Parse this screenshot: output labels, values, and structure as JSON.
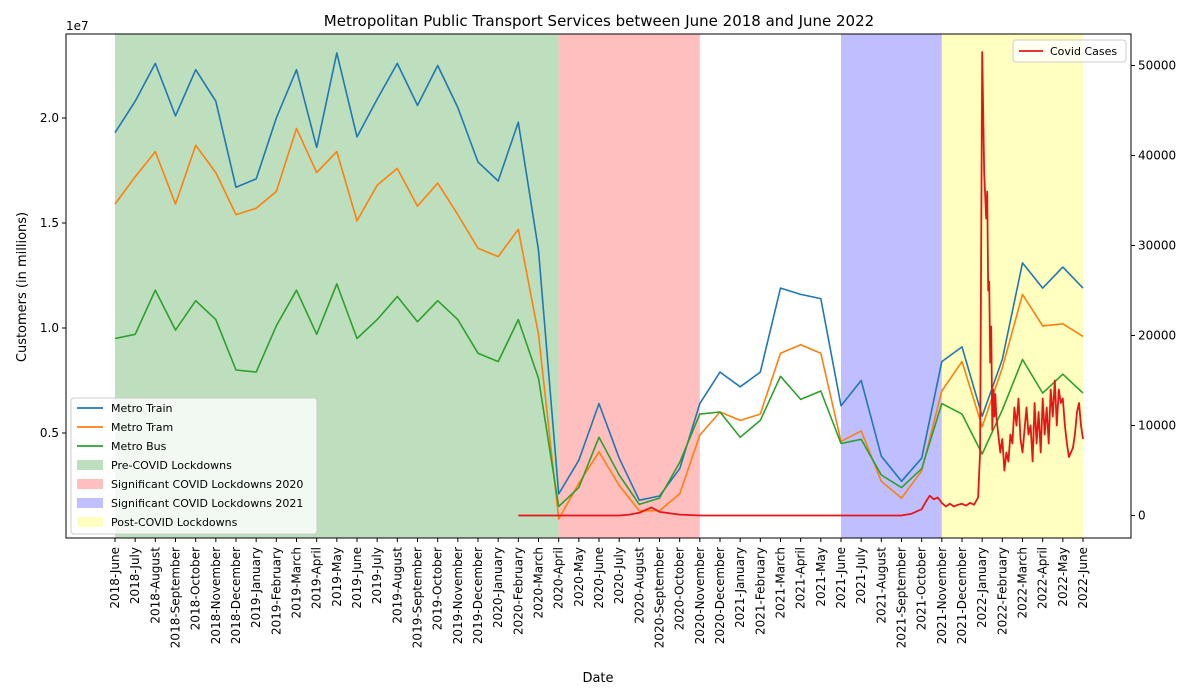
{
  "chart_data": {
    "type": "line",
    "title": "Metropolitan Public Transport Services between June 2018 and June 2022",
    "xlabel": "Date",
    "ylabel": "Customers (in millions)",
    "y_offset_label": "1e7",
    "ylim": [
      0,
      24000000
    ],
    "y2lim": [
      -2500,
      53500
    ],
    "grid": false,
    "categories": [
      "2018-June",
      "2018-July",
      "2018-August",
      "2018-September",
      "2018-October",
      "2018-November",
      "2018-December",
      "2019-January",
      "2019-February",
      "2019-March",
      "2019-April",
      "2019-May",
      "2019-June",
      "2019-July",
      "2019-August",
      "2019-September",
      "2019-October",
      "2019-November",
      "2019-December",
      "2020-January",
      "2020-February",
      "2020-March",
      "2020-April",
      "2020-May",
      "2020-June",
      "2020-July",
      "2020-August",
      "2020-September",
      "2020-October",
      "2020-November",
      "2020-December",
      "2021-January",
      "2021-February",
      "2021-March",
      "2021-April",
      "2021-May",
      "2021-June",
      "2021-July",
      "2021-August",
      "2021-September",
      "2021-October",
      "2021-November",
      "2021-December",
      "2022-January",
      "2022-February",
      "2022-March",
      "2022-April",
      "2022-May",
      "2022-June"
    ],
    "y_ticks": [
      {
        "value": 5000000,
        "label": "0.5"
      },
      {
        "value": 10000000,
        "label": "1.0"
      },
      {
        "value": 15000000,
        "label": "1.5"
      },
      {
        "value": 20000000,
        "label": "2.0"
      }
    ],
    "y2_ticks": [
      {
        "value": 0,
        "label": "0"
      },
      {
        "value": 10000,
        "label": "10000"
      },
      {
        "value": 20000,
        "label": "20000"
      },
      {
        "value": 30000,
        "label": "30000"
      },
      {
        "value": 40000,
        "label": "40000"
      },
      {
        "value": 50000,
        "label": "50000"
      }
    ],
    "series": [
      {
        "name": "Metro Train",
        "color": "#1f77b4",
        "values": [
          19300000,
          20800000,
          22600000,
          20100000,
          22300000,
          20800000,
          16700000,
          17100000,
          20000000,
          22300000,
          18600000,
          23100000,
          19100000,
          20900000,
          22600000,
          20600000,
          22500000,
          20500000,
          17900000,
          17000000,
          19800000,
          13700000,
          2100000,
          3700000,
          6400000,
          3800000,
          1800000,
          2000000,
          3300000,
          6400000,
          7900000,
          7200000,
          7900000,
          11900000,
          11600000,
          11400000,
          6300000,
          7500000,
          3900000,
          2700000,
          3800000,
          8400000,
          9100000,
          5800000,
          8500000,
          13100000,
          11900000,
          12900000,
          11900000
        ]
      },
      {
        "name": "Metro Tram",
        "color": "#ff7f0e",
        "values": [
          15900000,
          17200000,
          18400000,
          15900000,
          18700000,
          17400000,
          15400000,
          15700000,
          16500000,
          19500000,
          17400000,
          18400000,
          15100000,
          16800000,
          17600000,
          15800000,
          16900000,
          15400000,
          13800000,
          13400000,
          14700000,
          9700000,
          900000,
          2600000,
          4100000,
          2500000,
          1300000,
          1300000,
          2100000,
          4900000,
          6000000,
          5600000,
          5900000,
          8800000,
          9200000,
          8800000,
          4600000,
          5100000,
          2700000,
          1900000,
          3200000,
          7000000,
          8400000,
          5300000,
          8100000,
          11600000,
          10100000,
          10200000,
          9600000
        ]
      },
      {
        "name": "Metro Bus",
        "color": "#2ca02c",
        "values": [
          9500000,
          9700000,
          11800000,
          9900000,
          11300000,
          10400000,
          8000000,
          7900000,
          10100000,
          11800000,
          9700000,
          12100000,
          9500000,
          10400000,
          11500000,
          10300000,
          11300000,
          10400000,
          8800000,
          8400000,
          10400000,
          7600000,
          1500000,
          2400000,
          4800000,
          3000000,
          1600000,
          1900000,
          3600000,
          5900000,
          6000000,
          4800000,
          5600000,
          7700000,
          6600000,
          7000000,
          4500000,
          4700000,
          3000000,
          2400000,
          3300000,
          6400000,
          5900000,
          4000000,
          6100000,
          8500000,
          6900000,
          7800000,
          6900000
        ]
      }
    ],
    "covid_series": {
      "name": "Covid Cases",
      "color": "#e8141a",
      "axis": "right",
      "x": [
        20.0,
        21.0,
        22.0,
        23.0,
        24.0,
        25.0,
        25.5,
        26.0,
        26.3,
        26.6,
        27.0,
        28.0,
        29.0,
        30.0,
        32.0,
        34.0,
        36.0,
        38.0,
        39.0,
        39.5,
        40.0,
        40.2,
        40.4,
        40.6,
        40.8,
        41.0,
        41.2,
        41.4,
        41.6,
        41.8,
        42.0,
        42.2,
        42.4,
        42.6,
        42.8,
        42.9,
        43.0,
        43.1,
        43.2,
        43.25,
        43.3,
        43.35,
        43.4,
        43.45,
        43.5,
        43.55,
        43.6,
        43.65,
        43.7,
        43.8,
        43.9,
        44.0,
        44.1,
        44.2,
        44.3,
        44.4,
        44.5,
        44.6,
        44.7,
        44.8,
        44.9,
        45.0,
        45.1,
        45.2,
        45.3,
        45.4,
        45.5,
        45.6,
        45.7,
        45.8,
        45.9,
        46.0,
        46.1,
        46.2,
        46.3,
        46.4,
        46.5,
        46.6,
        46.7,
        46.8,
        46.9,
        47.0,
        47.1,
        47.2,
        47.3,
        47.4,
        47.5,
        47.6,
        47.7,
        47.8,
        47.9,
        48.0
      ],
      "values": [
        0,
        0,
        0,
        0,
        0,
        0,
        100,
        300,
        600,
        900,
        400,
        100,
        0,
        0,
        0,
        0,
        0,
        0,
        0,
        200,
        700,
        1500,
        2200,
        1800,
        2000,
        1400,
        1000,
        1300,
        1000,
        1200,
        1300,
        1100,
        1400,
        1200,
        2000,
        7000,
        51500,
        38000,
        33000,
        36000,
        25000,
        26000,
        17000,
        21000,
        9500,
        14000,
        11000,
        13500,
        11000,
        9000,
        7000,
        8500,
        5000,
        7000,
        6000,
        9000,
        8000,
        12000,
        10000,
        13000,
        8500,
        7000,
        9500,
        12000,
        9000,
        10000,
        6000,
        12500,
        8000,
        11500,
        7000,
        13000,
        9000,
        12000,
        8000,
        14000,
        11000,
        15000,
        10000,
        14000,
        12500,
        13000,
        10000,
        8000,
        6500,
        7000,
        7500,
        9000,
        11500,
        12500,
        10000,
        8500
      ]
    },
    "shaded_regions": [
      {
        "name": "Pre-COVID Lockdowns",
        "color": "#7ebf7e",
        "opacity": 0.5,
        "start": "2018-June",
        "end": "2020-April"
      },
      {
        "name": "Significant COVID Lockdowns 2020",
        "color": "#ff7f7f",
        "opacity": 0.5,
        "start": "2020-April",
        "end": "2020-November"
      },
      {
        "name": "Significant COVID Lockdowns 2021",
        "color": "#7f7fff",
        "opacity": 0.5,
        "start": "2021-June",
        "end": "2021-November"
      },
      {
        "name": "Post-COVID Lockdowns",
        "color": "#ffff7f",
        "opacity": 0.5,
        "start": "2021-November",
        "end": "2022-June"
      }
    ],
    "legend_left_position": "lower left",
    "legend_right_position": "upper right"
  }
}
